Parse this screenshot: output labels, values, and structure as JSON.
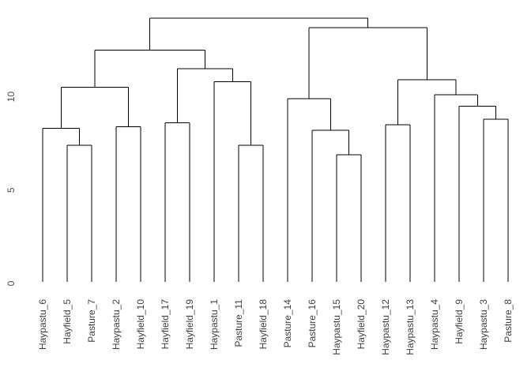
{
  "chart_data": {
    "type": "dendrogram",
    "title": "",
    "xlabel": "",
    "ylabel": "",
    "orientation": "vertical",
    "grid": false,
    "legend": null,
    "y_axis": {
      "ticks": [
        0,
        5,
        10
      ],
      "range": [
        0,
        14.5
      ],
      "tick_labels_rotated": true
    },
    "leaf_labels_rotated": true,
    "leaves": [
      "Haypastu_6",
      "Hayfield_5",
      "Pasture_7",
      "Haypastu_2",
      "Hayfield_10",
      "Hayfield_17",
      "Hayfield_19",
      "Haypastu_1",
      "Pasture_11",
      "Hayfield_18",
      "Pasture_14",
      "Pasture_16",
      "Haypastu_15",
      "Hayfield_20",
      "Haypastu_12",
      "Haypastu_13",
      "Haypastu_4",
      "Hayfield_9",
      "Haypastu_3",
      "Pasture_8"
    ],
    "tree": {
      "height": 14.2,
      "children": [
        {
          "height": 12.5,
          "children": [
            {
              "height": 10.5,
              "children": [
                {
                  "height": 8.3,
                  "children": [
                    {
                      "leaf": "Haypastu_6"
                    },
                    {
                      "height": 7.4,
                      "children": [
                        {
                          "leaf": "Hayfield_5"
                        },
                        {
                          "leaf": "Pasture_7"
                        }
                      ]
                    }
                  ]
                },
                {
                  "height": 8.4,
                  "children": [
                    {
                      "leaf": "Haypastu_2"
                    },
                    {
                      "leaf": "Hayfield_10"
                    }
                  ]
                }
              ]
            },
            {
              "height": 11.5,
              "children": [
                {
                  "height": 8.6,
                  "children": [
                    {
                      "leaf": "Hayfield_17"
                    },
                    {
                      "leaf": "Hayfield_19"
                    }
                  ]
                },
                {
                  "height": 10.8,
                  "children": [
                    {
                      "leaf": "Haypastu_1"
                    },
                    {
                      "height": 7.4,
                      "children": [
                        {
                          "leaf": "Pasture_11"
                        },
                        {
                          "leaf": "Hayfield_18"
                        }
                      ]
                    }
                  ]
                }
              ]
            }
          ]
        },
        {
          "height": 13.7,
          "children": [
            {
              "height": 9.9,
              "children": [
                {
                  "leaf": "Pasture_14"
                },
                {
                  "height": 8.2,
                  "children": [
                    {
                      "leaf": "Pasture_16"
                    },
                    {
                      "height": 6.9,
                      "children": [
                        {
                          "leaf": "Haypastu_15"
                        },
                        {
                          "leaf": "Hayfield_20"
                        }
                      ]
                    }
                  ]
                }
              ]
            },
            {
              "height": 10.9,
              "children": [
                {
                  "height": 8.5,
                  "children": [
                    {
                      "leaf": "Haypastu_12"
                    },
                    {
                      "leaf": "Haypastu_13"
                    }
                  ]
                },
                {
                  "height": 10.1,
                  "children": [
                    {
                      "leaf": "Haypastu_4"
                    },
                    {
                      "height": 9.5,
                      "children": [
                        {
                          "leaf": "Hayfield_9"
                        },
                        {
                          "height": 8.8,
                          "children": [
                            {
                              "leaf": "Haypastu_3"
                            },
                            {
                              "leaf": "Pasture_8"
                            }
                          ]
                        }
                      ]
                    }
                  ]
                }
              ]
            }
          ]
        }
      ]
    },
    "colors": {
      "line": "#000000",
      "label": "#404040",
      "axis_label": "#4d4d4d",
      "background": "#ffffff"
    }
  }
}
